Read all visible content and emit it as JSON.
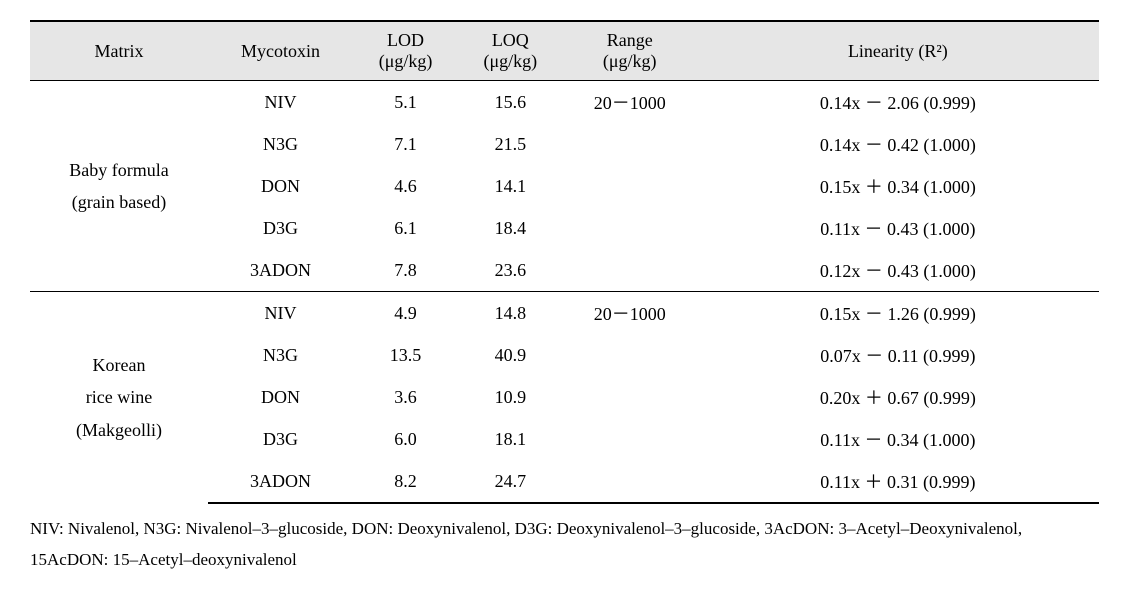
{
  "headers": {
    "matrix": "Matrix",
    "mycotoxin": "Mycotoxin",
    "lod": "LOD",
    "lod_unit": "(μg/kg)",
    "loq": "LOQ",
    "loq_unit": "(μg/kg)",
    "range": "Range",
    "range_unit": "(μg/kg)",
    "linearity": "Linearity (R²)"
  },
  "group1": {
    "matrix_line1": "Baby formula",
    "matrix_line2": "(grain based)",
    "rows": [
      {
        "myc": "NIV",
        "lod": "5.1",
        "loq": "15.6",
        "range": "20－1000",
        "lin": "0.14x － 2.06 (0.999)"
      },
      {
        "myc": "N3G",
        "lod": "7.1",
        "loq": "21.5",
        "range": "",
        "lin": "0.14x － 0.42 (1.000)"
      },
      {
        "myc": "DON",
        "lod": "4.6",
        "loq": "14.1",
        "range": "",
        "lin": "0.15x ＋ 0.34 (1.000)"
      },
      {
        "myc": "D3G",
        "lod": "6.1",
        "loq": "18.4",
        "range": "",
        "lin": "0.11x － 0.43 (1.000)"
      },
      {
        "myc": "3ADON",
        "lod": "7.8",
        "loq": "23.6",
        "range": "",
        "lin": "0.12x － 0.43 (1.000)"
      }
    ]
  },
  "group2": {
    "matrix_line1": "Korean",
    "matrix_line2": "rice wine",
    "matrix_line3": "(Makgeolli)",
    "rows": [
      {
        "myc": "NIV",
        "lod": "4.9",
        "loq": "14.8",
        "range": "20－1000",
        "lin": "0.15x － 1.26 (0.999)"
      },
      {
        "myc": "N3G",
        "lod": "13.5",
        "loq": "40.9",
        "range": "",
        "lin": "0.07x － 0.11 (0.999)"
      },
      {
        "myc": "DON",
        "lod": "3.6",
        "loq": "10.9",
        "range": "",
        "lin": "0.20x ＋ 0.67 (0.999)"
      },
      {
        "myc": "D3G",
        "lod": "6.0",
        "loq": "18.1",
        "range": "",
        "lin": "0.11x － 0.34 (1.000)"
      },
      {
        "myc": "3ADON",
        "lod": "8.2",
        "loq": "24.7",
        "range": "",
        "lin": "0.11x ＋ 0.31 (0.999)"
      }
    ]
  },
  "footnote": "NIV: Nivalenol, N3G: Nivalenol–3–glucoside, DON: Deoxynivalenol, D3G: Deoxynivalenol–3–glucoside, 3AcDON: 3–Acetyl–Deoxynivalenol, 15AcDON: 15–Acetyl–deoxynivalenol"
}
